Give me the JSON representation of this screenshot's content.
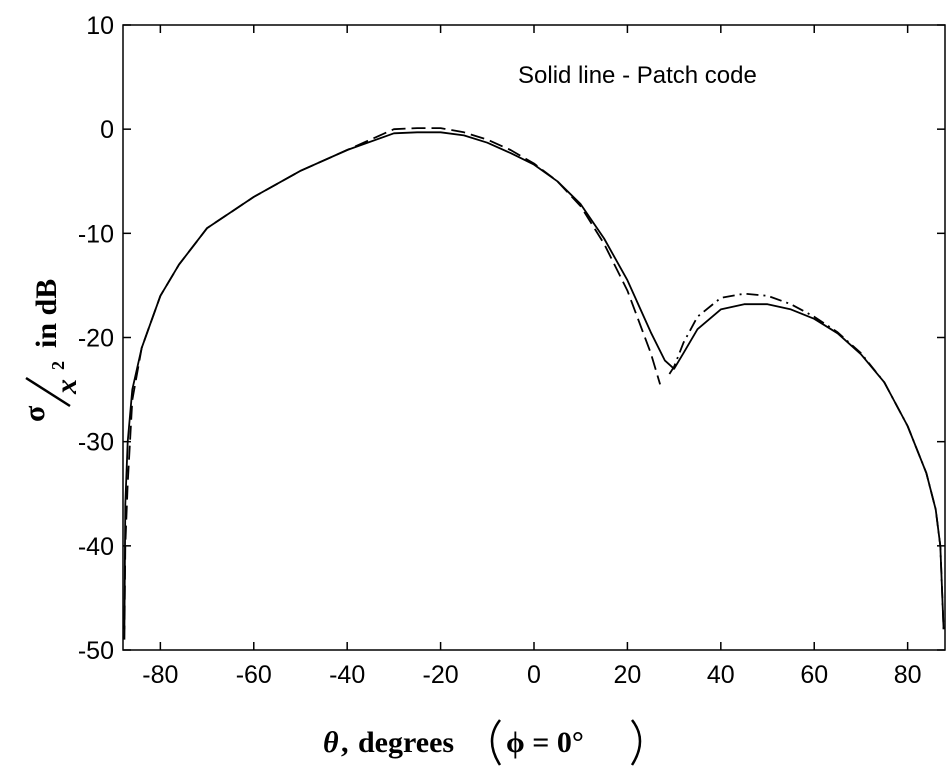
{
  "chart_data": {
    "type": "line",
    "title": "",
    "annotation": "Solid line - Patch code",
    "xlabel": {
      "theta": "θ",
      "comma": ",",
      "degrees": "degrees",
      "phi_expr": "ϕ = 0°"
    },
    "ylabel": {
      "sigma": "σ",
      "x2": "x",
      "exp": "2",
      "rest": "in dB"
    },
    "xlim": [
      -88,
      88
    ],
    "ylim": [
      -50,
      10
    ],
    "xticks": [
      -80,
      -60,
      -40,
      -20,
      0,
      20,
      40,
      60,
      80
    ],
    "yticks": [
      10,
      0,
      -10,
      -20,
      -30,
      -40,
      -50
    ],
    "grid": false,
    "series": [
      {
        "style": "solid",
        "x": [
          -87.7,
          -87.5,
          -87,
          -86,
          -84,
          -82,
          -80,
          -76,
          -70,
          -60,
          -50,
          -40,
          -30,
          -25,
          -20,
          -15,
          -10,
          -5,
          0,
          5,
          10,
          15,
          20,
          25,
          28,
          30,
          32,
          35,
          40,
          45,
          50,
          55,
          60,
          65,
          70,
          75,
          80,
          84,
          86,
          87,
          87.7
        ],
        "y": [
          -48,
          -36,
          -30,
          -25,
          -21,
          -18.5,
          -16,
          -13,
          -9.5,
          -6.5,
          -4,
          -2,
          -0.4,
          -0.3,
          -0.3,
          -0.6,
          -1.3,
          -2.3,
          -3.4,
          -5,
          -7.2,
          -10.5,
          -14.5,
          -19.5,
          -22.2,
          -23,
          -21.5,
          -19.2,
          -17.3,
          -16.8,
          -16.8,
          -17.3,
          -18.2,
          -19.6,
          -21.6,
          -24.3,
          -28.5,
          -33,
          -36.5,
          -40,
          -48
        ]
      },
      {
        "style": "dashed",
        "x": [
          -87.7,
          -87.5,
          -87,
          -86,
          -84,
          -82,
          -80,
          -76,
          -70,
          -60,
          -50,
          -40,
          -30,
          -25,
          -20,
          -15,
          -10,
          -5,
          0,
          5,
          10,
          15,
          20,
          25,
          27
        ],
        "y": [
          -49,
          -40,
          -34,
          -26,
          -21,
          -18.5,
          -16,
          -13,
          -9.5,
          -6.5,
          -4,
          -2,
          0,
          0.1,
          0.1,
          -0.3,
          -1,
          -2,
          -3.3,
          -5,
          -7.4,
          -11,
          -15.5,
          -21.5,
          -24.5
        ]
      },
      {
        "style": "dash-dot",
        "x": [
          29,
          30,
          32,
          35,
          40,
          45,
          50,
          55,
          60,
          65,
          70,
          75,
          80,
          84,
          86,
          87,
          87.7
        ],
        "y": [
          -23.5,
          -22.8,
          -20.5,
          -18,
          -16.2,
          -15.8,
          -16,
          -16.8,
          -18,
          -19.5,
          -21.5,
          -24.3,
          -28.5,
          -33,
          -36.5,
          -40,
          -48
        ]
      }
    ]
  }
}
